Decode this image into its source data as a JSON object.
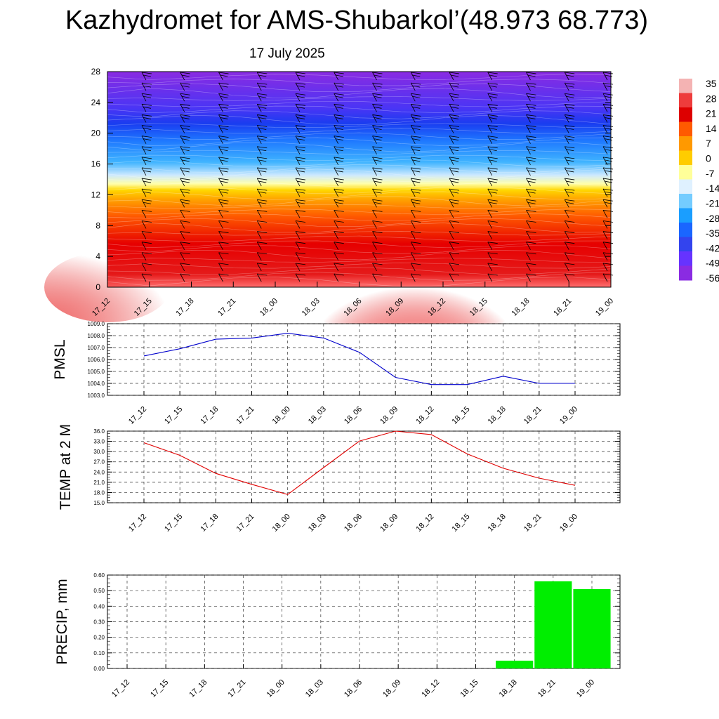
{
  "title": "Kazhydromet for AMS-Shubarkol’(48.973 68.773)",
  "subtitle": "17 July 2025",
  "colors": {
    "pmsl_line": "#0000cc",
    "temp_line": "#e00000",
    "precip_bar": "#00ee00",
    "axis": "#000000",
    "grid": "#333333"
  },
  "chart_data": [
    {
      "type": "heatmap",
      "name": "cross-section",
      "x": [
        "17_12",
        "17_15",
        "17_18",
        "17_21",
        "18_00",
        "18_03",
        "18_06",
        "18_09",
        "18_12",
        "18_15",
        "18_18",
        "18_21",
        "19_00"
      ],
      "y_ticks": [
        0,
        4,
        8,
        12,
        16,
        20,
        24,
        28
      ],
      "ylim": [
        0,
        28
      ],
      "colorbar": {
        "labels": [
          "35",
          "28",
          "21",
          "14",
          "7",
          "0",
          "-7",
          "-14",
          "-21",
          "-28",
          "-35",
          "-42",
          "-49",
          "-56"
        ],
        "colors": [
          "#f4b3b3",
          "#ee3c3c",
          "#dd0000",
          "#ff5a00",
          "#ff9900",
          "#ffcc00",
          "#ffff99",
          "#dff1ff",
          "#74ccff",
          "#1a9eff",
          "#1a66ff",
          "#3344ee",
          "#6633ff",
          "#8a2be2"
        ]
      },
      "overlay": "wind barbs"
    },
    {
      "type": "line",
      "name": "pmsl",
      "ylabel": "PMSL",
      "categories": [
        "17_12",
        "17_15",
        "17_18",
        "17_21",
        "18_00",
        "18_03",
        "18_06",
        "18_09",
        "18_12",
        "18_15",
        "18_18",
        "18_21",
        "19_00"
      ],
      "values": [
        1006.3,
        1006.9,
        1007.7,
        1007.8,
        1008.2,
        1007.8,
        1006.6,
        1004.5,
        1003.9,
        1003.9,
        1004.6,
        1004.0,
        1004.0
      ],
      "ylim": [
        1003.0,
        1009.0
      ],
      "yticks": [
        "1003.0",
        "1004.0",
        "1005.0",
        "1006.0",
        "1007.0",
        "1008.0",
        "1009.0"
      ]
    },
    {
      "type": "line",
      "name": "temp",
      "ylabel": "TEMP at 2 M",
      "categories": [
        "17_12",
        "17_15",
        "17_18",
        "17_21",
        "18_00",
        "18_03",
        "18_06",
        "18_09",
        "18_12",
        "18_15",
        "18_18",
        "18_21",
        "19_00"
      ],
      "values": [
        32.6,
        28.9,
        23.6,
        20.4,
        17.4,
        25.3,
        33.1,
        36.0,
        35.0,
        29.3,
        25.1,
        22.2,
        20.1
      ],
      "ylim": [
        15.0,
        36.0
      ],
      "yticks": [
        "15.0",
        "18.0",
        "21.0",
        "24.0",
        "27.0",
        "30.0",
        "33.0",
        "36.0"
      ]
    },
    {
      "type": "bar",
      "name": "precip",
      "ylabel": "PRECIP, mm",
      "categories": [
        "17_12",
        "17_15",
        "17_18",
        "17_21",
        "18_00",
        "18_03",
        "18_06",
        "18_09",
        "18_12",
        "18_15",
        "18_18",
        "18_21",
        "19_00"
      ],
      "values": [
        0,
        0,
        0,
        0,
        0,
        0,
        0,
        0,
        0,
        0,
        0.05,
        0.56,
        0.51
      ],
      "ylim": [
        0,
        0.6
      ],
      "yticks": [
        "0.00",
        "0.10",
        "0.20",
        "0.30",
        "0.40",
        "0.50",
        "0.60"
      ]
    }
  ]
}
